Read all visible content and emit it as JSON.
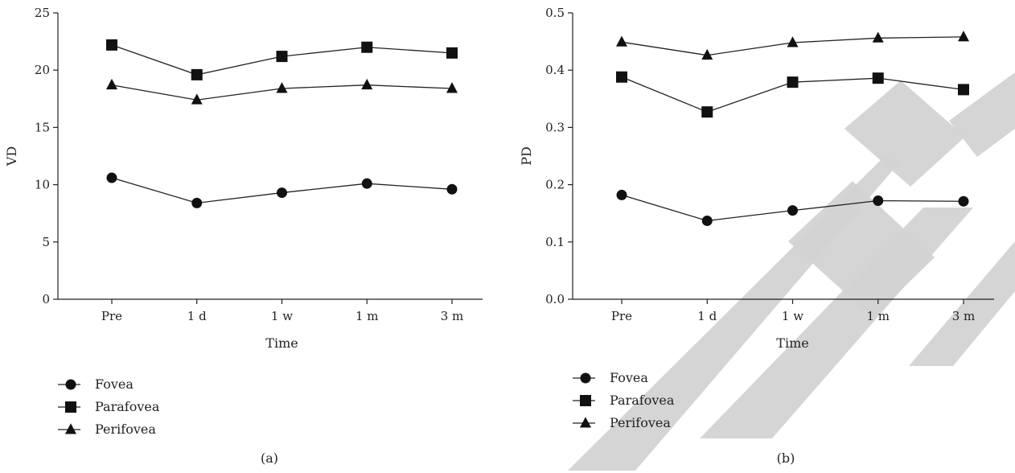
{
  "watermark": {
    "text": "RETRACTED",
    "color": "#d3d3d3"
  },
  "chart_data": [
    {
      "type": "line",
      "panel_label": "(a)",
      "xlabel": "Time",
      "ylabel": "VD",
      "categories": [
        "Pre",
        "1 d",
        "1 w",
        "1 m",
        "3 m"
      ],
      "ylim": [
        0,
        25
      ],
      "yticks": [
        0,
        5,
        10,
        15,
        20,
        25
      ],
      "ytick_labels": [
        "0",
        "5",
        "10",
        "15",
        "20",
        "25"
      ],
      "grid": false,
      "legend_position": "bottom-left",
      "series": [
        {
          "name": "Fovea",
          "marker": "circle",
          "values": [
            10.6,
            8.4,
            9.3,
            10.1,
            9.6
          ]
        },
        {
          "name": "Parafovea",
          "marker": "square",
          "values": [
            22.2,
            19.6,
            21.2,
            22.0,
            21.5
          ]
        },
        {
          "name": "Perifovea",
          "marker": "triangle",
          "values": [
            18.7,
            17.4,
            18.4,
            18.7,
            18.4
          ]
        }
      ]
    },
    {
      "type": "line",
      "panel_label": "(b)",
      "xlabel": "Time",
      "ylabel": "PD",
      "categories": [
        "Pre",
        "1 d",
        "1 w",
        "1 m",
        "3 m"
      ],
      "ylim": [
        0,
        0.5
      ],
      "yticks": [
        0,
        0.1,
        0.2,
        0.3,
        0.4,
        0.5
      ],
      "ytick_labels": [
        "0.0",
        "0.1",
        "0.2",
        "0.3",
        "0.4",
        "0.5"
      ],
      "grid": false,
      "legend_position": "bottom-left",
      "series": [
        {
          "name": "Fovea",
          "marker": "circle",
          "values": [
            0.182,
            0.137,
            0.155,
            0.172,
            0.171
          ]
        },
        {
          "name": "Parafovea",
          "marker": "square",
          "values": [
            0.388,
            0.327,
            0.379,
            0.386,
            0.366
          ]
        },
        {
          "name": "Perifovea",
          "marker": "triangle",
          "values": [
            0.449,
            0.426,
            0.448,
            0.456,
            0.458
          ]
        }
      ]
    }
  ]
}
